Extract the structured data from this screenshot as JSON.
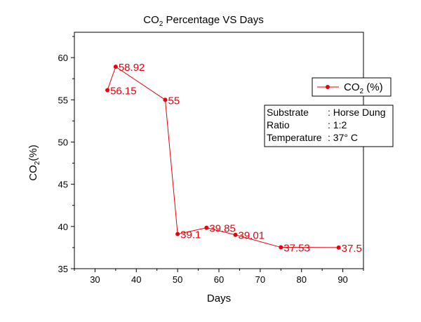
{
  "chart_data": {
    "type": "line",
    "title": {
      "main": "CO",
      "sub": "2",
      "rest": " Percentage VS Days"
    },
    "xlabel": "Days",
    "ylabel": {
      "main": "CO",
      "sub": "2",
      "rest": "(%)"
    },
    "xlim": [
      25,
      95
    ],
    "ylim": [
      35,
      63
    ],
    "x_ticks": [
      30,
      40,
      50,
      60,
      70,
      80,
      90
    ],
    "y_ticks": [
      35,
      40,
      45,
      50,
      55,
      60
    ],
    "series": [
      {
        "name": {
          "main": "CO",
          "sub": "2",
          "rest": " (%)"
        },
        "color": "#e8000b",
        "points": [
          {
            "x": 33,
            "y": 56.15,
            "label": "56.15"
          },
          {
            "x": 35,
            "y": 58.92,
            "label": "58.92"
          },
          {
            "x": 47,
            "y": 55,
            "label": "55"
          },
          {
            "x": 50,
            "y": 39.1,
            "label": "39.1"
          },
          {
            "x": 57,
            "y": 39.85,
            "label": "39.85"
          },
          {
            "x": 64,
            "y": 39.01,
            "label": "39.01"
          },
          {
            "x": 75,
            "y": 37.53,
            "label": "37.53"
          },
          {
            "x": 89,
            "y": 37.5,
            "label": "37.5"
          }
        ]
      }
    ],
    "legend_position": "top-right",
    "info_box": [
      {
        "key": "Substrate",
        "value": ": Horse Dung"
      },
      {
        "key": "Ratio",
        "value": ": 1:2"
      },
      {
        "key": "Temperature",
        "value": ": 37° C"
      }
    ]
  }
}
